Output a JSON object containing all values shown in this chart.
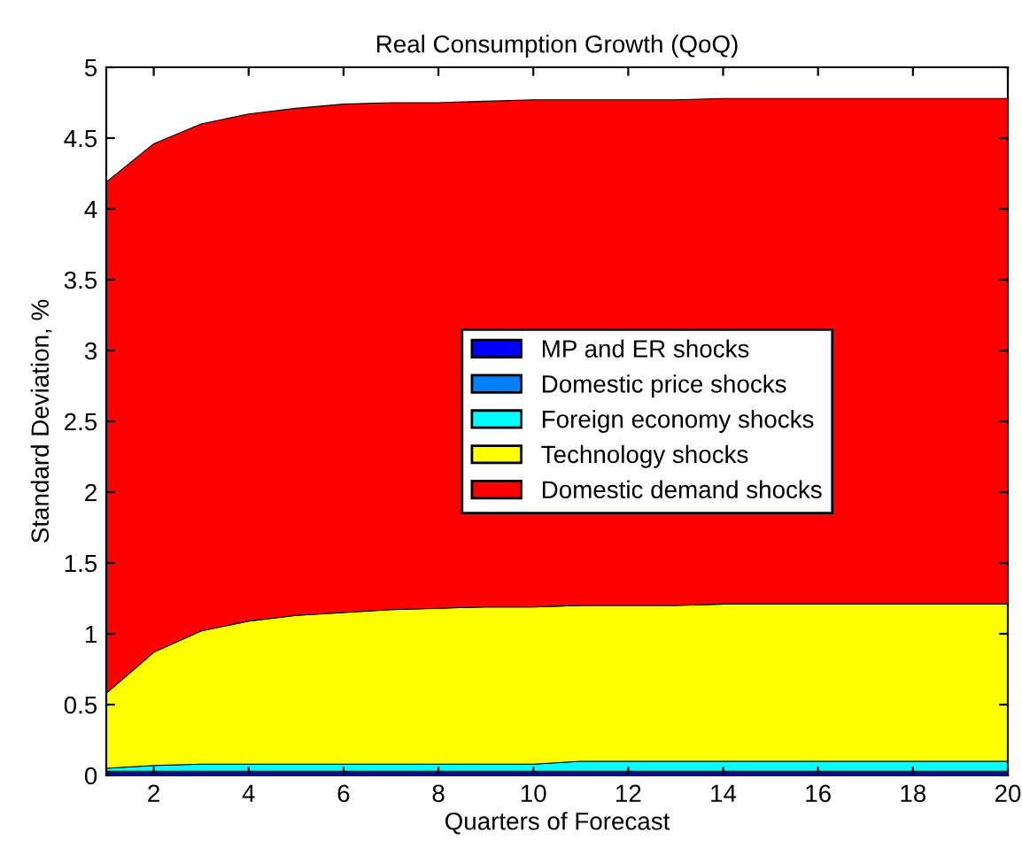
{
  "chart_data": {
    "type": "area",
    "stacked": true,
    "title": "Real Consumption Growth (QoQ)",
    "xlabel": "Quarters of Forecast",
    "ylabel": "Standard Deviation, %",
    "x": [
      1,
      2,
      3,
      4,
      5,
      6,
      7,
      8,
      9,
      10,
      11,
      12,
      13,
      14,
      15,
      16,
      17,
      18,
      19,
      20
    ],
    "series": [
      {
        "name": "MP and ER shocks",
        "color": "#0000ff",
        "values": [
          0.02,
          0.02,
          0.02,
          0.02,
          0.02,
          0.02,
          0.02,
          0.02,
          0.02,
          0.02,
          0.02,
          0.02,
          0.02,
          0.02,
          0.02,
          0.02,
          0.02,
          0.02,
          0.02,
          0.02
        ]
      },
      {
        "name": "Domestic price shocks",
        "color": "#0080ff",
        "values": [
          0.01,
          0.01,
          0.01,
          0.01,
          0.01,
          0.01,
          0.01,
          0.01,
          0.01,
          0.01,
          0.01,
          0.01,
          0.01,
          0.01,
          0.01,
          0.01,
          0.01,
          0.01,
          0.01,
          0.01
        ]
      },
      {
        "name": "Foreign economy shocks",
        "color": "#00ffff",
        "values": [
          0.02,
          0.04,
          0.05,
          0.05,
          0.05,
          0.05,
          0.05,
          0.05,
          0.05,
          0.05,
          0.07,
          0.07,
          0.07,
          0.07,
          0.07,
          0.07,
          0.07,
          0.07,
          0.07,
          0.07
        ]
      },
      {
        "name": "Technology shocks",
        "color": "#ffff00",
        "values": [
          0.53,
          0.8,
          0.94,
          1.01,
          1.05,
          1.07,
          1.09,
          1.1,
          1.11,
          1.11,
          1.1,
          1.1,
          1.1,
          1.11,
          1.11,
          1.11,
          1.11,
          1.11,
          1.11,
          1.11
        ]
      },
      {
        "name": "Domestic demand shocks",
        "color": "#ff0000",
        "values": [
          3.61,
          3.59,
          3.58,
          3.58,
          3.58,
          3.59,
          3.58,
          3.57,
          3.57,
          3.58,
          3.57,
          3.57,
          3.57,
          3.57,
          3.57,
          3.57,
          3.57,
          3.57,
          3.57,
          3.57
        ]
      }
    ],
    "xlim": [
      1,
      20
    ],
    "xticks": [
      2,
      4,
      6,
      8,
      10,
      12,
      14,
      16,
      18,
      20
    ],
    "ylim": [
      0,
      5
    ],
    "yticks": [
      0,
      0.5,
      1,
      1.5,
      2,
      2.5,
      3,
      3.5,
      4,
      4.5,
      5
    ],
    "legend": "center"
  }
}
